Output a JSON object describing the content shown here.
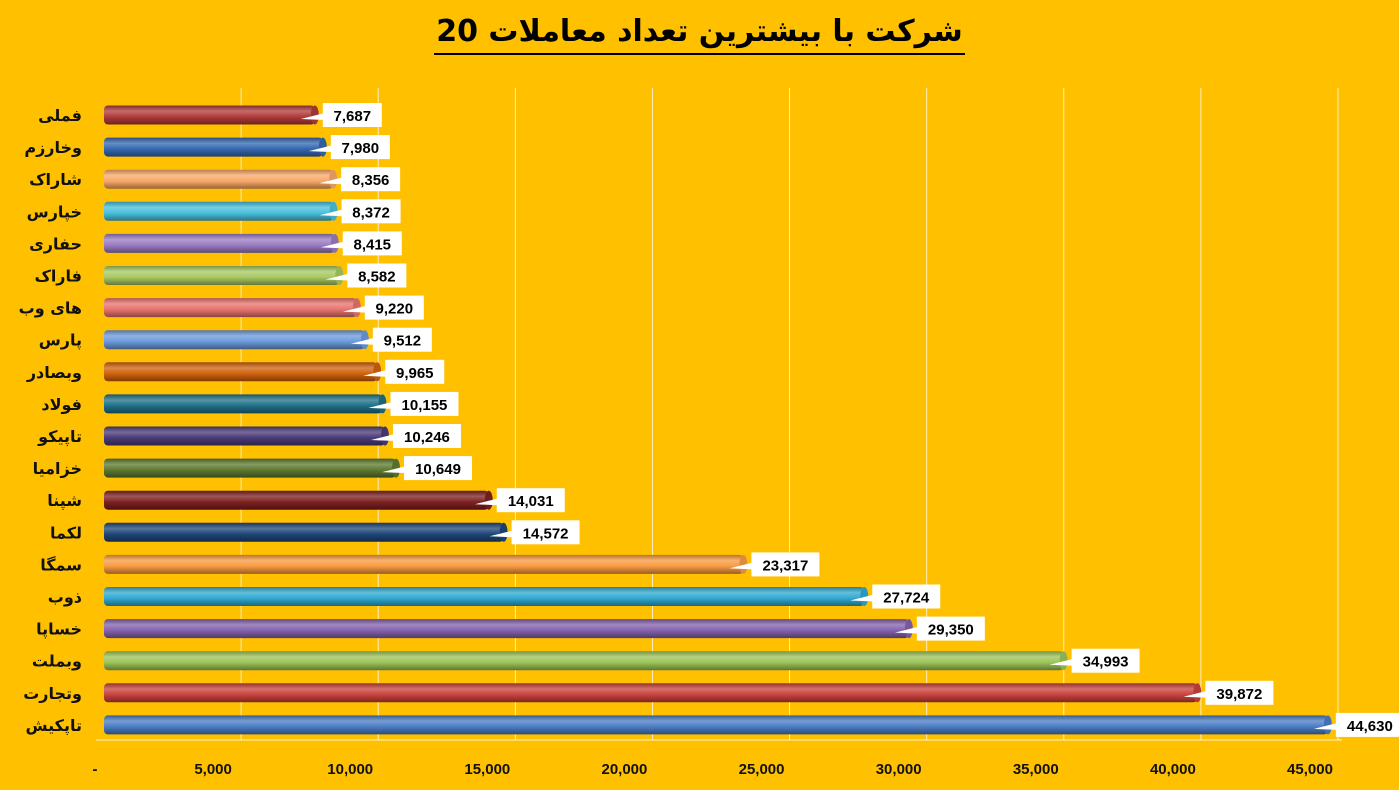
{
  "chart_data": {
    "type": "bar",
    "orientation": "horizontal",
    "title": "20 شرکت با بیشترین تعداد معاملات",
    "categories": [
      "فملی",
      "وخارزم",
      "شاراک",
      "خپارس",
      "حفاری",
      "فاراک",
      "های وب",
      "پارس",
      "وبصادر",
      "فولاد",
      "تاپیکو",
      "خزامیا",
      "شپنا",
      "لکما",
      "سمگا",
      "ذوب",
      "خساپا",
      "وبملت",
      "وتجارت",
      "تاپکیش"
    ],
    "values": [
      7687,
      7980,
      8356,
      8372,
      8415,
      8582,
      9220,
      9512,
      9965,
      10155,
      10246,
      10649,
      14031,
      14572,
      23317,
      27724,
      29350,
      34993,
      39872,
      44630
    ],
    "value_labels": [
      "7,687",
      "7,980",
      "8,356",
      "8,372",
      "8,415",
      "8,582",
      "9,220",
      "9,512",
      "9,965",
      "10,155",
      "10,246",
      "10,649",
      "14,031",
      "14,572",
      "23,317",
      "27,724",
      "29,350",
      "34,993",
      "39,872",
      "44,630"
    ],
    "bar_colors": [
      "#B03A3A",
      "#3468B0",
      "#F8A868",
      "#48C0DC",
      "#9A7CC2",
      "#A8C860",
      "#E8736E",
      "#6C9ADC",
      "#D0620C",
      "#1E7088",
      "#4A3A78",
      "#5E7A30",
      "#7E2020",
      "#1E4678",
      "#F89A40",
      "#30A8D0",
      "#8462AE",
      "#9CC458",
      "#C8423C",
      "#4A7CC4"
    ],
    "xlim": [
      0,
      45000
    ],
    "x_ticks": [
      0,
      5000,
      10000,
      15000,
      20000,
      25000,
      30000,
      35000,
      40000,
      45000
    ],
    "x_tick_labels": [
      "-",
      "5,000",
      "10,000",
      "15,000",
      "20,000",
      "25,000",
      "30,000",
      "35,000",
      "40,000",
      "45,000"
    ],
    "grid": true,
    "legend": "none"
  }
}
